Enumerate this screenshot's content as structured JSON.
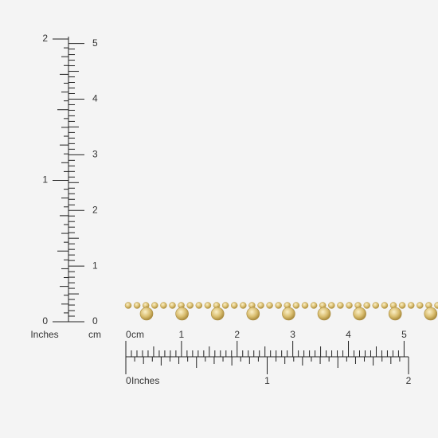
{
  "vertical_ruler": {
    "inch_labels": [
      0,
      1,
      2
    ],
    "inch_unit": "Inches",
    "cm_labels": [
      0,
      1,
      2,
      3,
      4,
      5
    ],
    "cm_unit": "cm"
  },
  "horizontal_ruler": {
    "cm_labels": [
      0,
      1,
      2,
      3,
      4,
      5
    ],
    "cm_unit": "cm",
    "inch_labels": [
      0,
      1,
      2
    ],
    "inch_unit": "Inches"
  }
}
